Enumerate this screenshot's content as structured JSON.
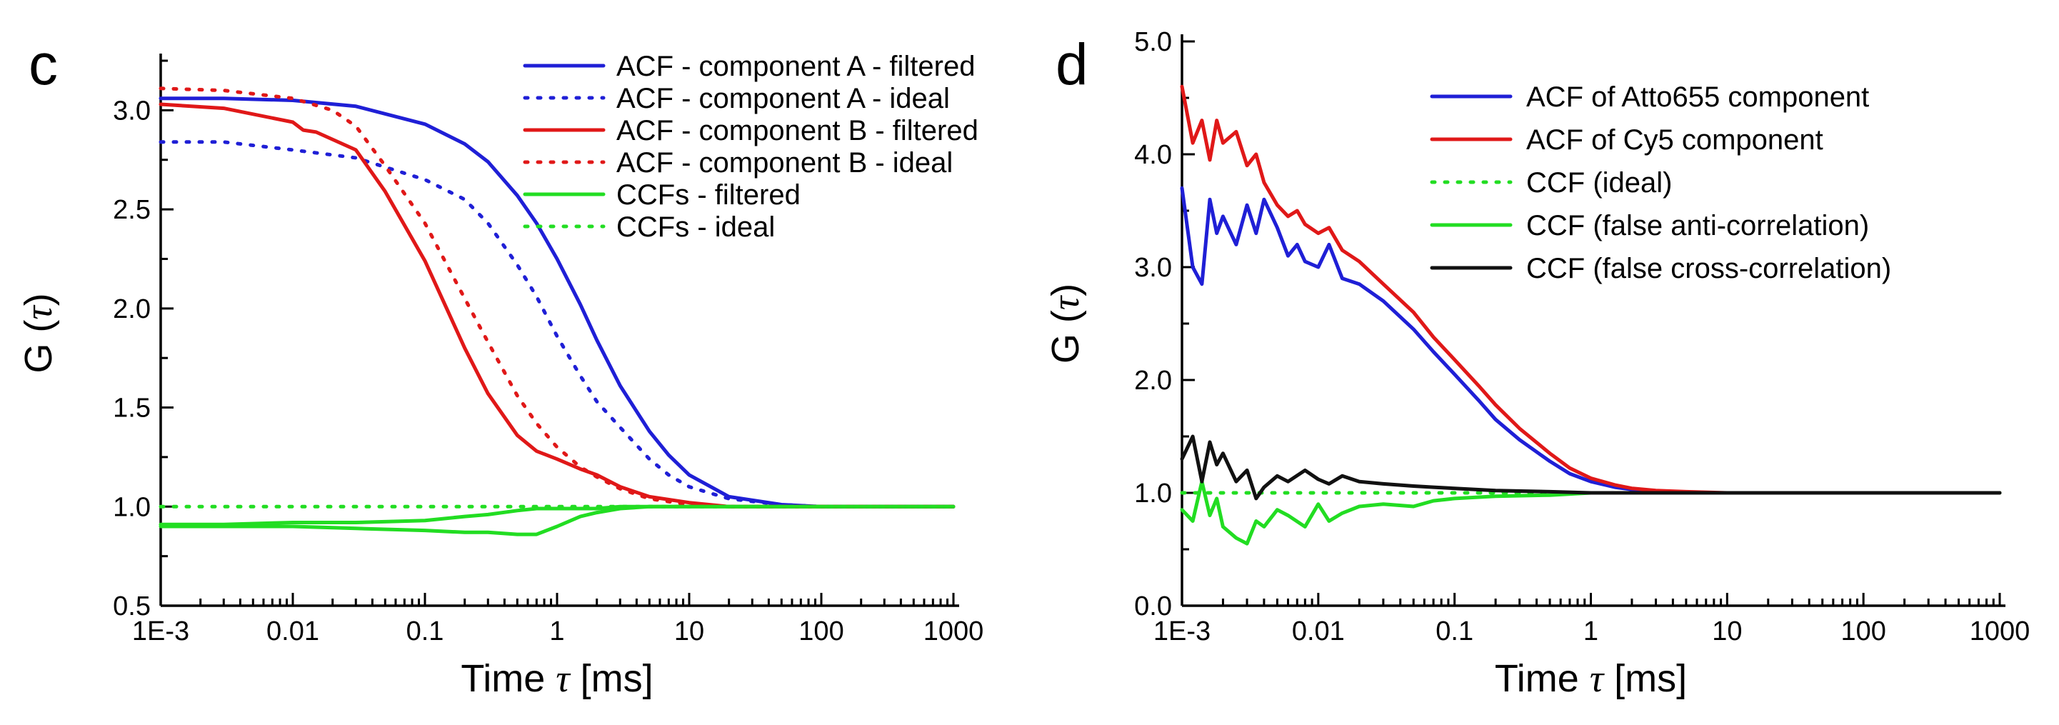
{
  "chart_data": [
    {
      "type": "line",
      "panel_label": "c",
      "xscale": "log",
      "xlim": [
        0.001,
        1000
      ],
      "ylim": [
        0.5,
        3.25
      ],
      "xticks": [
        0.001,
        0.01,
        0.1,
        1,
        10,
        100,
        1000
      ],
      "xtick_labels": [
        "1E-3",
        "0.01",
        "0.1",
        "1",
        "10",
        "100",
        "1000"
      ],
      "yticks": [
        0.5,
        1.0,
        1.5,
        2.0,
        2.5,
        3.0
      ],
      "ytick_labels": [
        "0.5",
        "1.0",
        "1.5",
        "2.0",
        "2.5",
        "3.0"
      ],
      "xlabel": {
        "prefix": "Time ",
        "symbol": "τ",
        "suffix": " [ms]"
      },
      "ylabel": {
        "prefix": "G (",
        "symbol": "τ",
        "suffix": ")"
      },
      "legend_position": "top-right",
      "series": [
        {
          "name": "ACF - component A - filtered",
          "color": "#1f1fd6",
          "style": "solid",
          "x": [
            0.001,
            0.003,
            0.01,
            0.03,
            0.1,
            0.2,
            0.3,
            0.5,
            0.7,
            1,
            1.5,
            2,
            3,
            5,
            7,
            10,
            20,
            50,
            100,
            300,
            1000
          ],
          "y": [
            3.06,
            3.06,
            3.05,
            3.02,
            2.93,
            2.83,
            2.74,
            2.57,
            2.43,
            2.25,
            2.02,
            1.84,
            1.61,
            1.38,
            1.26,
            1.16,
            1.05,
            1.01,
            1.0,
            1.0,
            1.0
          ]
        },
        {
          "name": "ACF - component A - ideal",
          "color": "#1f1fd6",
          "style": "dotted",
          "x": [
            0.001,
            0.003,
            0.01,
            0.03,
            0.1,
            0.2,
            0.3,
            0.5,
            0.7,
            1,
            1.5,
            2,
            3,
            5,
            7,
            10,
            20,
            50,
            100,
            300,
            1000
          ],
          "y": [
            2.84,
            2.84,
            2.8,
            2.76,
            2.65,
            2.55,
            2.43,
            2.22,
            2.06,
            1.86,
            1.66,
            1.53,
            1.4,
            1.24,
            1.16,
            1.1,
            1.04,
            1.01,
            1.0,
            1.0,
            1.0
          ]
        },
        {
          "name": "ACF - component B - filtered",
          "color": "#e01818",
          "style": "solid",
          "x": [
            0.001,
            0.003,
            0.01,
            0.012,
            0.015,
            0.03,
            0.05,
            0.1,
            0.2,
            0.3,
            0.5,
            0.7,
            1,
            1.5,
            2,
            3,
            5,
            10,
            20,
            50,
            100,
            1000
          ],
          "y": [
            3.03,
            3.01,
            2.94,
            2.9,
            2.89,
            2.8,
            2.59,
            2.24,
            1.8,
            1.57,
            1.36,
            1.28,
            1.24,
            1.19,
            1.16,
            1.1,
            1.05,
            1.02,
            1.0,
            1.0,
            1.0,
            1.0
          ]
        },
        {
          "name": "ACF - component B - ideal",
          "color": "#e01818",
          "style": "dotted",
          "x": [
            0.001,
            0.003,
            0.01,
            0.02,
            0.03,
            0.05,
            0.1,
            0.2,
            0.3,
            0.5,
            0.7,
            1,
            1.5,
            2,
            3,
            5,
            10,
            20,
            50,
            100,
            1000
          ],
          "y": [
            3.11,
            3.1,
            3.06,
            3.0,
            2.92,
            2.72,
            2.43,
            2.05,
            1.83,
            1.56,
            1.42,
            1.3,
            1.2,
            1.15,
            1.09,
            1.04,
            1.01,
            1.0,
            1.0,
            1.0,
            1.0
          ]
        },
        {
          "name": "CCFs - filtered",
          "color": "#22dd22",
          "style": "solid",
          "x": [
            0.001,
            0.003,
            0.01,
            0.03,
            0.1,
            0.2,
            0.3,
            0.5,
            0.7,
            1,
            1.5,
            2,
            3,
            5,
            10,
            20,
            50,
            100,
            1000
          ],
          "y": [
            0.9,
            0.9,
            0.9,
            0.89,
            0.88,
            0.87,
            0.87,
            0.86,
            0.86,
            0.9,
            0.95,
            0.97,
            0.99,
            1.0,
            1.0,
            1.0,
            1.0,
            1.0,
            1.0
          ]
        },
        {
          "name": "CCFs - ideal",
          "color": "#22dd22",
          "style": "dotted",
          "x": [
            0.001,
            1000
          ],
          "y": [
            1.0,
            1.0
          ]
        }
      ],
      "extra_lines": [
        {
          "series": "CCFs - filtered (2nd curve)",
          "color": "#22dd22",
          "style": "solid",
          "x": [
            0.001,
            0.003,
            0.01,
            0.03,
            0.1,
            0.2,
            0.3,
            0.5,
            0.7,
            1,
            1.5,
            2,
            3,
            5,
            10,
            100,
            1000
          ],
          "y": [
            0.91,
            0.91,
            0.92,
            0.92,
            0.93,
            0.95,
            0.96,
            0.98,
            0.99,
            0.99,
            0.99,
            0.99,
            1.0,
            1.0,
            1.0,
            1.0,
            1.0
          ]
        }
      ]
    },
    {
      "type": "line",
      "panel_label": "d",
      "xscale": "log",
      "xlim": [
        0.001,
        1000
      ],
      "ylim": [
        0.0,
        5.0
      ],
      "xticks": [
        0.001,
        0.01,
        0.1,
        1,
        10,
        100,
        1000
      ],
      "xtick_labels": [
        "1E-3",
        "0.01",
        "0.1",
        "1",
        "10",
        "100",
        "1000"
      ],
      "yticks": [
        0.0,
        1.0,
        2.0,
        3.0,
        4.0,
        5.0
      ],
      "ytick_labels": [
        "0.0",
        "1.0",
        "2.0",
        "3.0",
        "4.0",
        "5.0"
      ],
      "xlabel": {
        "prefix": "Time ",
        "symbol": "τ",
        "suffix": " [ms]"
      },
      "ylabel": {
        "prefix": "G (",
        "symbol": "τ",
        "suffix": ")"
      },
      "legend_position": "top-right",
      "series": [
        {
          "name": "ACF of Atto655 component",
          "color": "#1f1fd6",
          "style": "solid",
          "x": [
            0.001,
            0.0012,
            0.0014,
            0.0016,
            0.0018,
            0.002,
            0.0025,
            0.003,
            0.0035,
            0.004,
            0.005,
            0.006,
            0.007,
            0.008,
            0.01,
            0.012,
            0.015,
            0.02,
            0.03,
            0.05,
            0.07,
            0.1,
            0.15,
            0.2,
            0.3,
            0.5,
            0.7,
            1,
            1.5,
            2,
            3,
            5,
            10,
            20,
            100,
            1000
          ],
          "y": [
            3.7,
            3.0,
            2.85,
            3.6,
            3.3,
            3.45,
            3.2,
            3.55,
            3.3,
            3.6,
            3.35,
            3.1,
            3.2,
            3.05,
            3.0,
            3.2,
            2.9,
            2.85,
            2.7,
            2.45,
            2.25,
            2.05,
            1.82,
            1.65,
            1.47,
            1.28,
            1.17,
            1.1,
            1.05,
            1.03,
            1.01,
            1.0,
            1.0,
            1.0,
            1.0,
            1.0
          ]
        },
        {
          "name": "ACF of Cy5 component",
          "color": "#e01818",
          "style": "solid",
          "x": [
            0.001,
            0.0012,
            0.0014,
            0.0016,
            0.0018,
            0.002,
            0.0025,
            0.003,
            0.0035,
            0.004,
            0.005,
            0.006,
            0.007,
            0.008,
            0.01,
            0.012,
            0.015,
            0.02,
            0.03,
            0.05,
            0.07,
            0.1,
            0.15,
            0.2,
            0.3,
            0.5,
            0.7,
            1,
            1.5,
            2,
            3,
            5,
            10,
            20,
            100,
            1000
          ],
          "y": [
            4.6,
            4.1,
            4.3,
            3.95,
            4.3,
            4.1,
            4.2,
            3.9,
            4.0,
            3.75,
            3.55,
            3.45,
            3.5,
            3.38,
            3.3,
            3.35,
            3.15,
            3.05,
            2.85,
            2.6,
            2.38,
            2.18,
            1.95,
            1.78,
            1.57,
            1.35,
            1.22,
            1.13,
            1.07,
            1.04,
            1.02,
            1.01,
            1.0,
            1.0,
            1.0,
            1.0
          ]
        },
        {
          "name": "CCF (ideal)",
          "color": "#22dd22",
          "style": "dotted",
          "x": [
            0.001,
            1000
          ],
          "y": [
            1.0,
            1.0
          ]
        },
        {
          "name": "CCF (false anti-correlation)",
          "color": "#22dd22",
          "style": "solid",
          "x": [
            0.001,
            0.0012,
            0.0014,
            0.0016,
            0.0018,
            0.002,
            0.0025,
            0.003,
            0.0035,
            0.004,
            0.005,
            0.006,
            0.008,
            0.01,
            0.012,
            0.015,
            0.02,
            0.03,
            0.05,
            0.07,
            0.1,
            0.2,
            0.5,
            1,
            2,
            10,
            100,
            1000
          ],
          "y": [
            0.85,
            0.75,
            1.1,
            0.8,
            0.95,
            0.7,
            0.6,
            0.55,
            0.75,
            0.7,
            0.85,
            0.8,
            0.7,
            0.9,
            0.75,
            0.82,
            0.88,
            0.9,
            0.88,
            0.93,
            0.95,
            0.97,
            0.98,
            1.0,
            1.0,
            1.0,
            1.0,
            1.0
          ]
        },
        {
          "name": "CCF (false cross-correlation)",
          "color": "#111111",
          "style": "solid",
          "x": [
            0.001,
            0.0012,
            0.0014,
            0.0016,
            0.0018,
            0.002,
            0.0025,
            0.003,
            0.0035,
            0.004,
            0.005,
            0.006,
            0.008,
            0.01,
            0.012,
            0.015,
            0.02,
            0.03,
            0.05,
            0.07,
            0.1,
            0.2,
            0.5,
            1,
            2,
            10,
            100,
            1000
          ],
          "y": [
            1.3,
            1.5,
            1.1,
            1.45,
            1.25,
            1.35,
            1.1,
            1.2,
            0.95,
            1.05,
            1.15,
            1.1,
            1.2,
            1.12,
            1.08,
            1.15,
            1.1,
            1.08,
            1.06,
            1.05,
            1.04,
            1.02,
            1.01,
            1.0,
            1.0,
            1.0,
            1.0,
            1.0
          ]
        }
      ]
    }
  ]
}
